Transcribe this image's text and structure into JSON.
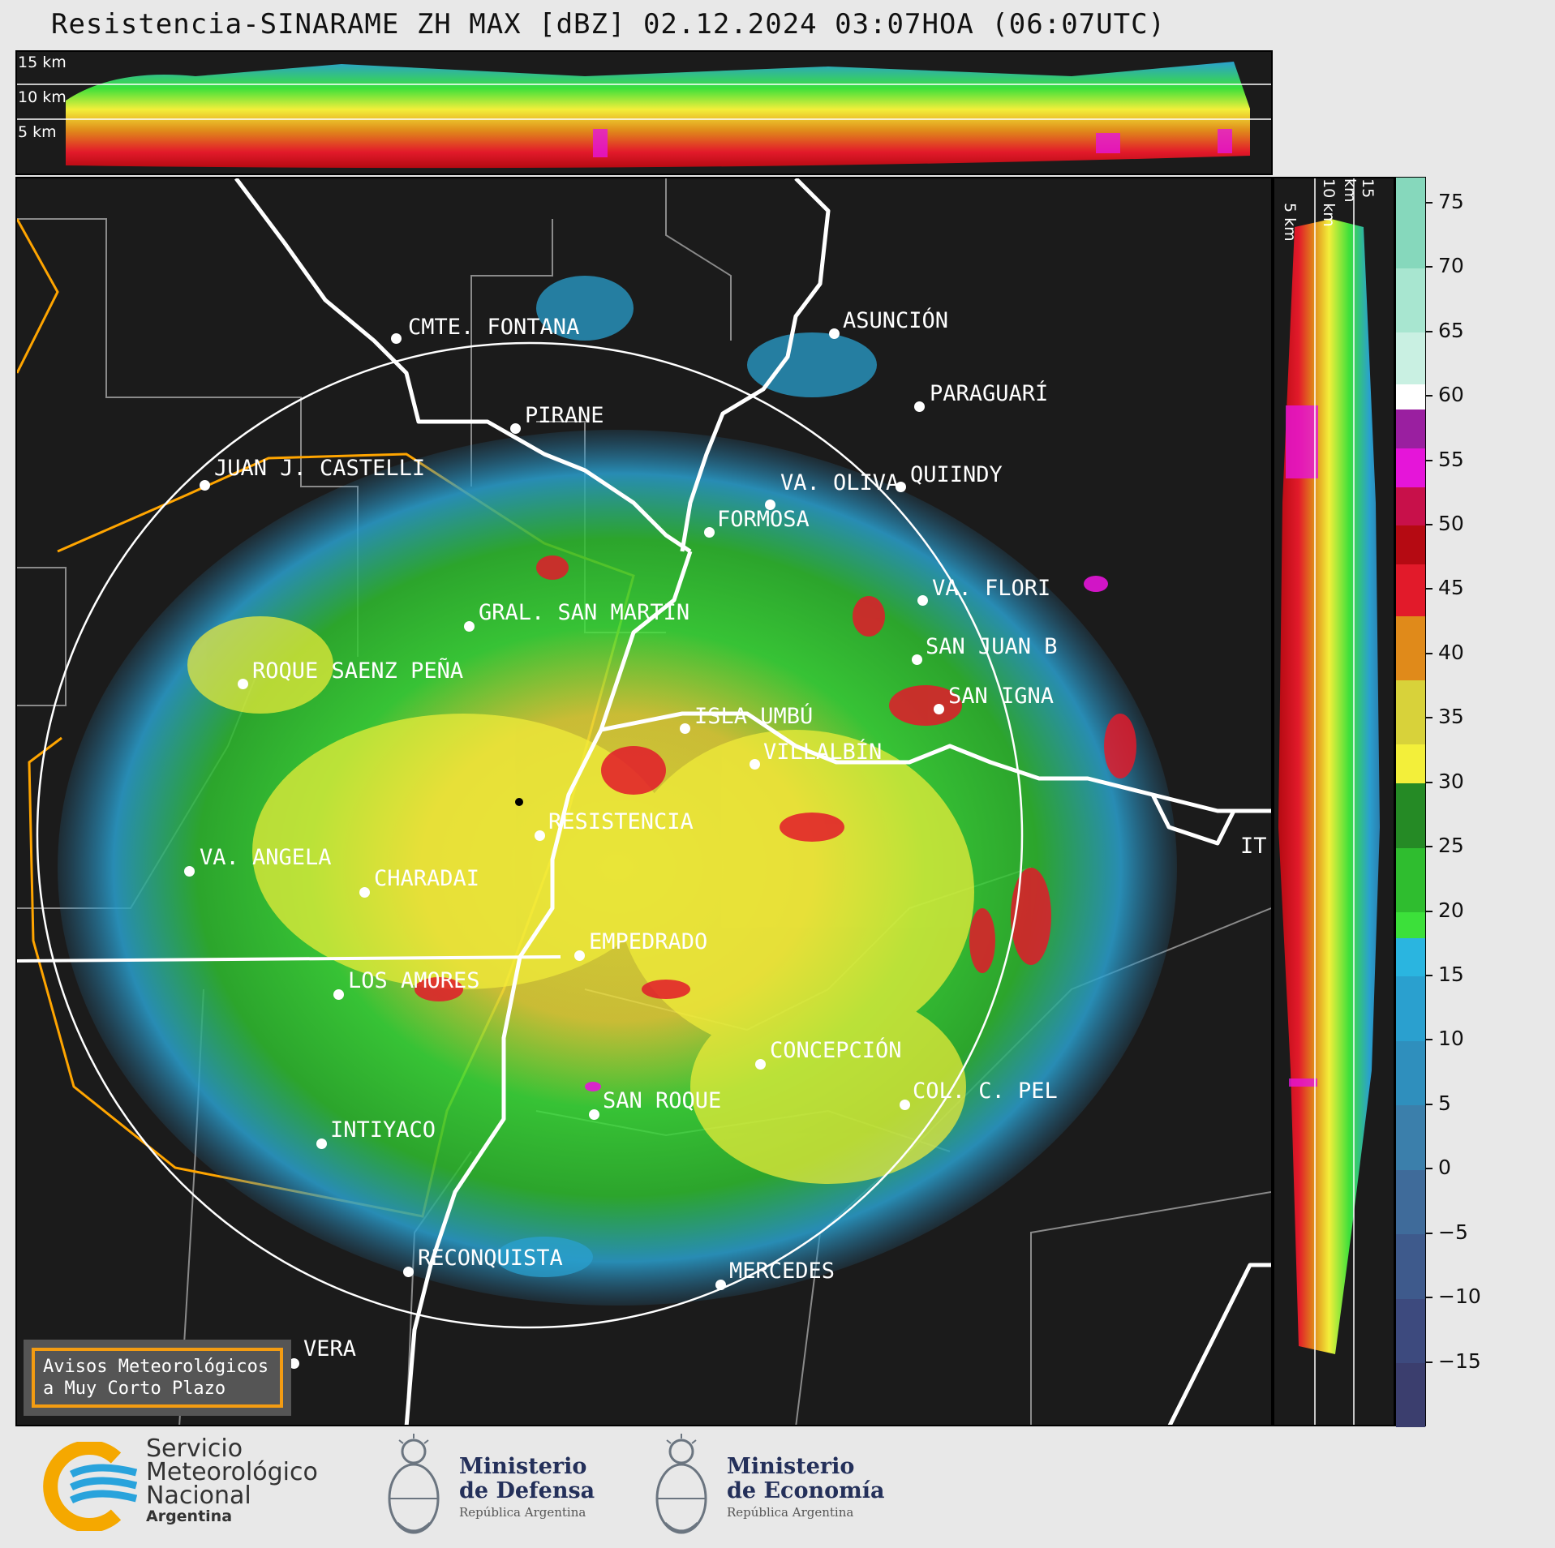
{
  "title": "Resistencia-SINARAME ZH MAX [dBZ] 02.12.2024 03:07HOA (06:07UTC)",
  "top_profile": {
    "labels": [
      "15 km",
      "10 km",
      "5 km"
    ]
  },
  "right_profile": {
    "labels": [
      "5 km",
      "10 km",
      "15 km"
    ]
  },
  "colorbar": {
    "unit": "dBZ",
    "ticks": [
      "75",
      "70",
      "65",
      "60",
      "55",
      "50",
      "45",
      "40",
      "35",
      "30",
      "25",
      "20",
      "15",
      "10",
      "5",
      "0",
      "−5",
      "−10",
      "−15"
    ],
    "scale_range": [
      -20,
      77
    ],
    "colors": [
      {
        "from": -20,
        "to": -15,
        "color": "#3b3e6e"
      },
      {
        "from": -15,
        "to": -10,
        "color": "#3d4a7e"
      },
      {
        "from": -10,
        "to": -5,
        "color": "#3e5a8c"
      },
      {
        "from": -5,
        "to": 0,
        "color": "#3f6b9a"
      },
      {
        "from": 0,
        "to": 5,
        "color": "#3b7fab"
      },
      {
        "from": 5,
        "to": 10,
        "color": "#2f8fbd"
      },
      {
        "from": 10,
        "to": 15,
        "color": "#2aa0cf"
      },
      {
        "from": 15,
        "to": 18,
        "color": "#2ab5e0"
      },
      {
        "from": 18,
        "to": 20,
        "color": "#3ce03a"
      },
      {
        "from": 20,
        "to": 25,
        "color": "#2fbd2f"
      },
      {
        "from": 25,
        "to": 30,
        "color": "#258a25"
      },
      {
        "from": 30,
        "to": 33,
        "color": "#f3ef3a"
      },
      {
        "from": 33,
        "to": 38,
        "color": "#d8d23a"
      },
      {
        "from": 38,
        "to": 43,
        "color": "#e08a1a"
      },
      {
        "from": 43,
        "to": 47,
        "color": "#e21a2a"
      },
      {
        "from": 47,
        "to": 50,
        "color": "#b50a12"
      },
      {
        "from": 50,
        "to": 53,
        "color": "#c8104a"
      },
      {
        "from": 53,
        "to": 56,
        "color": "#e515d9"
      },
      {
        "from": 56,
        "to": 59,
        "color": "#9a1fa0"
      },
      {
        "from": 59,
        "to": 61,
        "color": "#ffffff"
      },
      {
        "from": 61,
        "to": 65,
        "color": "#c9f0e2"
      },
      {
        "from": 65,
        "to": 70,
        "color": "#a8e6d0"
      },
      {
        "from": 70,
        "to": 77,
        "color": "#86d8bc"
      }
    ]
  },
  "cities": [
    {
      "name": "CMTE. FONTANA"
    },
    {
      "name": "ASUNCIÓN"
    },
    {
      "name": "PARAGUARÍ"
    },
    {
      "name": "PIRANE"
    },
    {
      "name": "JUAN J. CASTELLI"
    },
    {
      "name": "VA. OLIVA"
    },
    {
      "name": "QUIINDY"
    },
    {
      "name": "FORMOSA"
    },
    {
      "name": "VA. FLORI"
    },
    {
      "name": "GRAL. SAN MARTIN"
    },
    {
      "name": "SAN JUAN B"
    },
    {
      "name": "ROQUE SAENZ PEÑA"
    },
    {
      "name": "SAN IGNA"
    },
    {
      "name": "ISLA UMBÚ"
    },
    {
      "name": "VILLALBÍN"
    },
    {
      "name": "RESISTENCIA"
    },
    {
      "name": "IT"
    },
    {
      "name": "VA. ANGELA"
    },
    {
      "name": "CHARADAI"
    },
    {
      "name": "EMPEDRADO"
    },
    {
      "name": "LOS AMORES"
    },
    {
      "name": "CONCEPCIÓN"
    },
    {
      "name": "SAN ROQUE"
    },
    {
      "name": "COL. C. PEL"
    },
    {
      "name": "INTIYACO"
    },
    {
      "name": "RECONQUISTA"
    },
    {
      "name": "MERCEDES"
    },
    {
      "name": "VERA"
    }
  ],
  "avisos": {
    "line1": "Avisos Meteorológicos",
    "line2": "a Muy Corto Plazo"
  },
  "logos": {
    "smn": {
      "line1": "Servicio",
      "line2": "Meteorológico",
      "line3": "Nacional",
      "line4": "Argentina"
    },
    "defensa": {
      "line1": "Ministerio",
      "line2": "de Defensa",
      "line3": "República Argentina"
    },
    "economia": {
      "line1": "Ministerio",
      "line2": "de Economía",
      "line3": "República Argentina"
    }
  },
  "colors": {
    "background": "#1b1b1b",
    "border_province": "#ffa500",
    "river": "#ffffff",
    "boundaries": "#8a8a8a"
  }
}
